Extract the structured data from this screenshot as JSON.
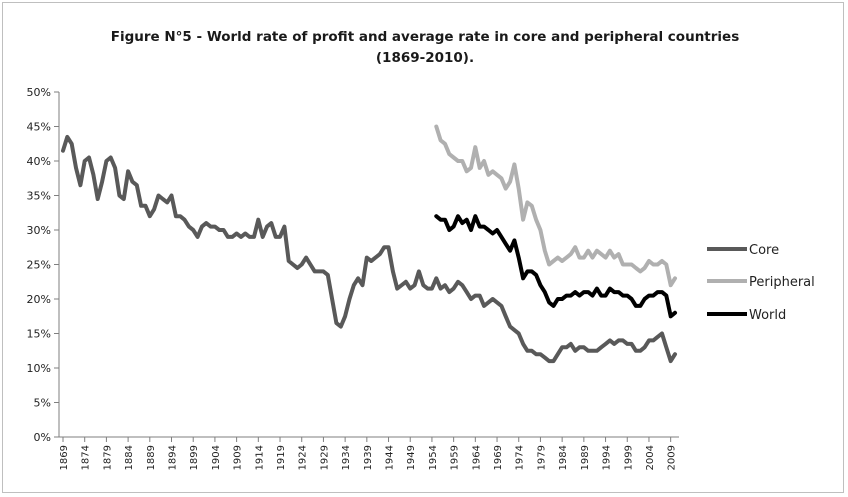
{
  "chart_data": {
    "type": "line",
    "title_line1": "Figure N°5 - World rate of profit and average rate in core and peripheral countries",
    "title_line2": "(1869-2010).",
    "xlabel": "",
    "ylabel": "",
    "xlim": [
      1869,
      2010
    ],
    "ylim": [
      0,
      50
    ],
    "y_ticks": [
      "0%",
      "5%",
      "10%",
      "15%",
      "20%",
      "25%",
      "30%",
      "35%",
      "40%",
      "45%",
      "50%"
    ],
    "x_ticks": [
      "1869",
      "1874",
      "1879",
      "1884",
      "1889",
      "1894",
      "1899",
      "1904",
      "1909",
      "1914",
      "1919",
      "1924",
      "1929",
      "1934",
      "1939",
      "1944",
      "1949",
      "1954",
      "1959",
      "1964",
      "1969",
      "1974",
      "1979",
      "1984",
      "1989",
      "1994",
      "1999",
      "2004",
      "2009"
    ],
    "grid": false,
    "legend_position": "right",
    "series": [
      {
        "name": "Core",
        "color": "#595959",
        "points": [
          [
            1869,
            41.5
          ],
          [
            1870,
            43.5
          ],
          [
            1871,
            42.5
          ],
          [
            1872,
            39
          ],
          [
            1873,
            36.5
          ],
          [
            1874,
            40
          ],
          [
            1875,
            40.5
          ],
          [
            1876,
            38
          ],
          [
            1877,
            34.5
          ],
          [
            1878,
            37
          ],
          [
            1879,
            40
          ],
          [
            1880,
            40.5
          ],
          [
            1881,
            39
          ],
          [
            1882,
            35
          ],
          [
            1883,
            34.5
          ],
          [
            1884,
            38.5
          ],
          [
            1885,
            37
          ],
          [
            1886,
            36.5
          ],
          [
            1887,
            33.5
          ],
          [
            1888,
            33.5
          ],
          [
            1889,
            32
          ],
          [
            1890,
            33
          ],
          [
            1891,
            35
          ],
          [
            1892,
            34.5
          ],
          [
            1893,
            34
          ],
          [
            1894,
            35
          ],
          [
            1895,
            32
          ],
          [
            1896,
            32
          ],
          [
            1897,
            31.5
          ],
          [
            1898,
            30.5
          ],
          [
            1899,
            30
          ],
          [
            1900,
            29
          ],
          [
            1901,
            30.5
          ],
          [
            1902,
            31
          ],
          [
            1903,
            30.5
          ],
          [
            1904,
            30.5
          ],
          [
            1905,
            30
          ],
          [
            1906,
            30
          ],
          [
            1907,
            29
          ],
          [
            1908,
            29
          ],
          [
            1909,
            29.5
          ],
          [
            1910,
            29
          ],
          [
            1911,
            29.5
          ],
          [
            1912,
            29
          ],
          [
            1913,
            29
          ],
          [
            1914,
            31.5
          ],
          [
            1915,
            29
          ],
          [
            1916,
            30.5
          ],
          [
            1917,
            31
          ],
          [
            1918,
            29
          ],
          [
            1919,
            29
          ],
          [
            1920,
            30.5
          ],
          [
            1921,
            25.5
          ],
          [
            1922,
            25
          ],
          [
            1923,
            24.5
          ],
          [
            1924,
            25
          ],
          [
            1925,
            26
          ],
          [
            1926,
            25
          ],
          [
            1927,
            24
          ],
          [
            1928,
            24
          ],
          [
            1929,
            24
          ],
          [
            1930,
            23.5
          ],
          [
            1931,
            20
          ],
          [
            1932,
            16.5
          ],
          [
            1933,
            16
          ],
          [
            1934,
            17.5
          ],
          [
            1935,
            20
          ],
          [
            1936,
            22
          ],
          [
            1937,
            23
          ],
          [
            1938,
            22
          ],
          [
            1939,
            26
          ],
          [
            1940,
            25.5
          ],
          [
            1941,
            26
          ],
          [
            1942,
            26.5
          ],
          [
            1943,
            27.5
          ],
          [
            1944,
            27.5
          ],
          [
            1945,
            24
          ],
          [
            1946,
            21.5
          ],
          [
            1947,
            22
          ],
          [
            1948,
            22.5
          ],
          [
            1949,
            21.5
          ],
          [
            1950,
            22
          ],
          [
            1951,
            24
          ],
          [
            1952,
            22
          ],
          [
            1953,
            21.5
          ],
          [
            1954,
            21.5
          ],
          [
            1955,
            23
          ],
          [
            1956,
            21.5
          ],
          [
            1957,
            22
          ],
          [
            1958,
            21
          ],
          [
            1959,
            21.5
          ],
          [
            1960,
            22.5
          ],
          [
            1961,
            22
          ],
          [
            1962,
            21
          ],
          [
            1963,
            20
          ],
          [
            1964,
            20.5
          ],
          [
            1965,
            20.5
          ],
          [
            1966,
            19
          ],
          [
            1967,
            19.5
          ],
          [
            1968,
            20
          ],
          [
            1969,
            19.5
          ],
          [
            1970,
            19
          ],
          [
            1971,
            17.5
          ],
          [
            1972,
            16
          ],
          [
            1973,
            15.5
          ],
          [
            1974,
            15
          ],
          [
            1975,
            13.5
          ],
          [
            1976,
            12.5
          ],
          [
            1977,
            12.5
          ],
          [
            1978,
            12
          ],
          [
            1979,
            12
          ],
          [
            1980,
            11.5
          ],
          [
            1981,
            11
          ],
          [
            1982,
            11
          ],
          [
            1983,
            12
          ],
          [
            1984,
            13
          ],
          [
            1985,
            13
          ],
          [
            1986,
            13.5
          ],
          [
            1987,
            12.5
          ],
          [
            1988,
            13
          ],
          [
            1989,
            13
          ],
          [
            1990,
            12.5
          ],
          [
            1991,
            12.5
          ],
          [
            1992,
            12.5
          ],
          [
            1993,
            13
          ],
          [
            1994,
            13.5
          ],
          [
            1995,
            14
          ],
          [
            1996,
            13.5
          ],
          [
            1997,
            14
          ],
          [
            1998,
            14
          ],
          [
            1999,
            13.5
          ],
          [
            2000,
            13.5
          ],
          [
            2001,
            12.5
          ],
          [
            2002,
            12.5
          ],
          [
            2003,
            13
          ],
          [
            2004,
            14
          ],
          [
            2005,
            14
          ],
          [
            2006,
            14.5
          ],
          [
            2007,
            15
          ],
          [
            2008,
            13
          ],
          [
            2009,
            11
          ],
          [
            2010,
            12
          ]
        ]
      },
      {
        "name": "Peripheral",
        "color": "#b0b0b0",
        "points": [
          [
            1955,
            45
          ],
          [
            1956,
            43
          ],
          [
            1957,
            42.5
          ],
          [
            1958,
            41
          ],
          [
            1959,
            40.5
          ],
          [
            1960,
            40
          ],
          [
            1961,
            40
          ],
          [
            1962,
            38.5
          ],
          [
            1963,
            39
          ],
          [
            1964,
            42
          ],
          [
            1965,
            39
          ],
          [
            1966,
            40
          ],
          [
            1967,
            38
          ],
          [
            1968,
            38.5
          ],
          [
            1969,
            38
          ],
          [
            1970,
            37.5
          ],
          [
            1971,
            36
          ],
          [
            1972,
            37
          ],
          [
            1973,
            39.5
          ],
          [
            1974,
            36
          ],
          [
            1975,
            31.5
          ],
          [
            1976,
            34
          ],
          [
            1977,
            33.5
          ],
          [
            1978,
            31.5
          ],
          [
            1979,
            30
          ],
          [
            1980,
            27
          ],
          [
            1981,
            25
          ],
          [
            1982,
            25.5
          ],
          [
            1983,
            26
          ],
          [
            1984,
            25.5
          ],
          [
            1985,
            26
          ],
          [
            1986,
            26.5
          ],
          [
            1987,
            27.5
          ],
          [
            1988,
            26
          ],
          [
            1989,
            26
          ],
          [
            1990,
            27
          ],
          [
            1991,
            26
          ],
          [
            1992,
            27
          ],
          [
            1993,
            26.5
          ],
          [
            1994,
            26
          ],
          [
            1995,
            27
          ],
          [
            1996,
            26
          ],
          [
            1997,
            26.5
          ],
          [
            1998,
            25
          ],
          [
            1999,
            25
          ],
          [
            2000,
            25
          ],
          [
            2001,
            24.5
          ],
          [
            2002,
            24
          ],
          [
            2003,
            24.5
          ],
          [
            2004,
            25.5
          ],
          [
            2005,
            25
          ],
          [
            2006,
            25
          ],
          [
            2007,
            25.5
          ],
          [
            2008,
            25
          ],
          [
            2009,
            22
          ],
          [
            2010,
            23
          ]
        ]
      },
      {
        "name": "World",
        "color": "#000000",
        "points": [
          [
            1955,
            32
          ],
          [
            1956,
            31.5
          ],
          [
            1957,
            31.5
          ],
          [
            1958,
            30
          ],
          [
            1959,
            30.5
          ],
          [
            1960,
            32
          ],
          [
            1961,
            31
          ],
          [
            1962,
            31.5
          ],
          [
            1963,
            30
          ],
          [
            1964,
            32
          ],
          [
            1965,
            30.5
          ],
          [
            1966,
            30.5
          ],
          [
            1967,
            30
          ],
          [
            1968,
            29.5
          ],
          [
            1969,
            30
          ],
          [
            1970,
            29
          ],
          [
            1971,
            28
          ],
          [
            1972,
            27
          ],
          [
            1973,
            28.5
          ],
          [
            1974,
            26
          ],
          [
            1975,
            23
          ],
          [
            1976,
            24
          ],
          [
            1977,
            24
          ],
          [
            1978,
            23.5
          ],
          [
            1979,
            22
          ],
          [
            1980,
            21
          ],
          [
            1981,
            19.5
          ],
          [
            1982,
            19
          ],
          [
            1983,
            20
          ],
          [
            1984,
            20
          ],
          [
            1985,
            20.5
          ],
          [
            1986,
            20.5
          ],
          [
            1987,
            21
          ],
          [
            1988,
            20.5
          ],
          [
            1989,
            21
          ],
          [
            1990,
            21
          ],
          [
            1991,
            20.5
          ],
          [
            1992,
            21.5
          ],
          [
            1993,
            20.5
          ],
          [
            1994,
            20.5
          ],
          [
            1995,
            21.5
          ],
          [
            1996,
            21
          ],
          [
            1997,
            21
          ],
          [
            1998,
            20.5
          ],
          [
            1999,
            20.5
          ],
          [
            2000,
            20
          ],
          [
            2001,
            19
          ],
          [
            2002,
            19
          ],
          [
            2003,
            20
          ],
          [
            2004,
            20.5
          ],
          [
            2005,
            20.5
          ],
          [
            2006,
            21
          ],
          [
            2007,
            21
          ],
          [
            2008,
            20.5
          ],
          [
            2009,
            17.5
          ],
          [
            2010,
            18
          ]
        ]
      }
    ]
  }
}
